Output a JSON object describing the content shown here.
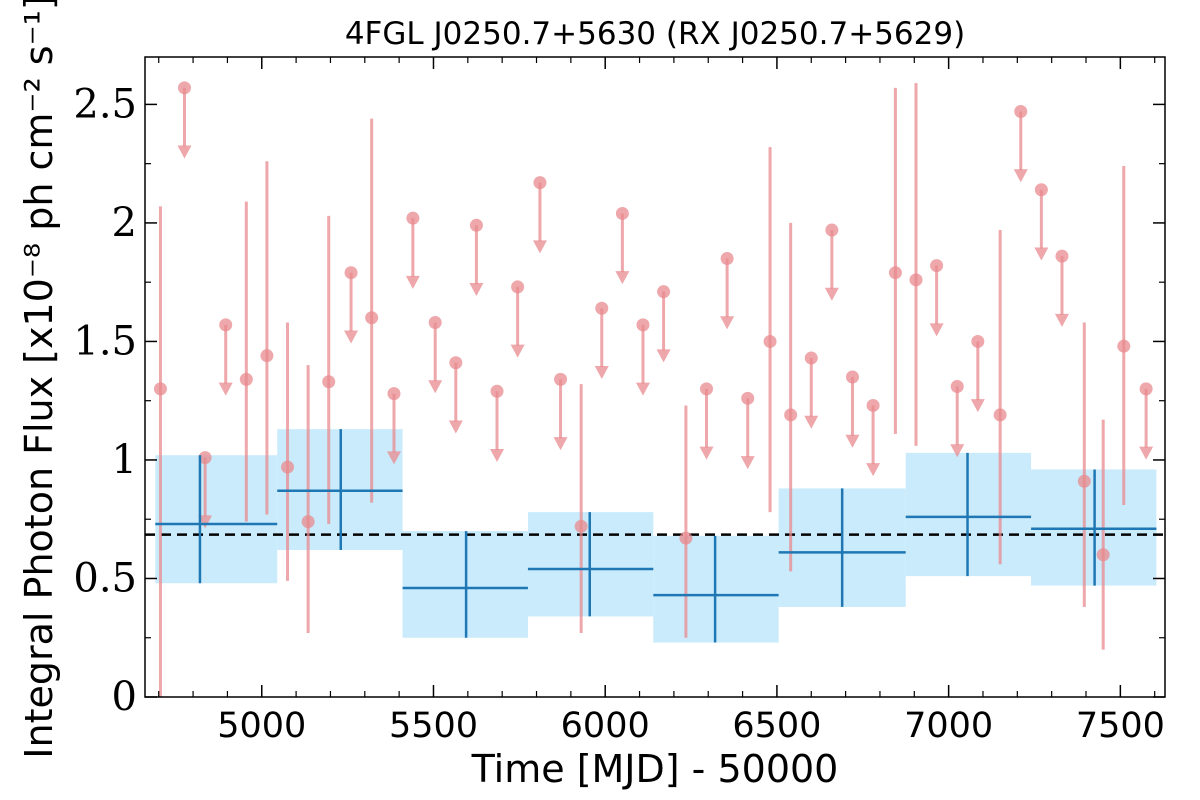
{
  "chart_data": {
    "type": "scatter",
    "title": "4FGL J0250.7+5630 (RX J0250.7+5629)",
    "xlabel": "Time [MJD] - 50000",
    "ylabel": "Integral Photon Flux [x10⁻⁸ ph cm⁻² s⁻¹]",
    "xlim": [
      4660,
      7630
    ],
    "ylim": [
      0,
      2.7
    ],
    "x_ticks": [
      5000,
      5500,
      6000,
      6500,
      7000,
      7500
    ],
    "y_ticks": [
      0,
      0.5,
      1,
      1.5,
      2,
      2.5
    ],
    "y_tick_labels": [
      "0",
      "0.5",
      "1",
      "1.5",
      "2",
      "2.5"
    ],
    "mean_flux": 0.685,
    "colors": {
      "short_bins": "#e8898e",
      "long_bins": "#1f77b4",
      "long_bins_fill": "#c9ebfb",
      "mean_line": "#000000"
    },
    "series": [
      {
        "kind": "detections_short_bins",
        "points": [
          {
            "x": 4705,
            "y": 1.3,
            "ylo": 0.0,
            "yhi": 2.07
          },
          {
            "x": 5015,
            "y": 1.44,
            "ylo": 0.77,
            "yhi": 2.26
          },
          {
            "x": 4955,
            "y": 1.34,
            "ylo": 0.74,
            "yhi": 2.09
          },
          {
            "x": 5075,
            "y": 0.97,
            "ylo": 0.49,
            "yhi": 1.58
          },
          {
            "x": 5135,
            "y": 0.74,
            "ylo": 0.27,
            "yhi": 1.4
          },
          {
            "x": 5195,
            "y": 1.33,
            "ylo": 0.73,
            "yhi": 2.03
          },
          {
            "x": 5320,
            "y": 1.6,
            "ylo": 0.82,
            "yhi": 2.44
          },
          {
            "x": 5930,
            "y": 0.72,
            "ylo": 0.27,
            "yhi": 1.32
          },
          {
            "x": 6235,
            "y": 0.67,
            "ylo": 0.25,
            "yhi": 1.23
          },
          {
            "x": 6480,
            "y": 1.5,
            "ylo": 0.78,
            "yhi": 2.32
          },
          {
            "x": 6540,
            "y": 1.19,
            "ylo": 0.53,
            "yhi": 2.0
          },
          {
            "x": 6845,
            "y": 1.79,
            "ylo": 1.11,
            "yhi": 2.57
          },
          {
            "x": 6905,
            "y": 1.76,
            "ylo": 1.06,
            "yhi": 2.59
          },
          {
            "x": 7150,
            "y": 1.19,
            "ylo": 0.56,
            "yhi": 1.97
          },
          {
            "x": 7395,
            "y": 0.91,
            "ylo": 0.38,
            "yhi": 1.58
          },
          {
            "x": 7450,
            "y": 0.6,
            "ylo": 0.2,
            "yhi": 1.17
          },
          {
            "x": 7510,
            "y": 1.48,
            "ylo": 0.81,
            "yhi": 2.24
          }
        ]
      },
      {
        "kind": "upper_limits_short_bins",
        "points": [
          {
            "x": 4775,
            "y": 2.57,
            "arrow_to": 2.28
          },
          {
            "x": 4835,
            "y": 1.01,
            "arrow_to": 0.72
          },
          {
            "x": 4895,
            "y": 1.57,
            "arrow_to": 1.28
          },
          {
            "x": 5260,
            "y": 1.79,
            "arrow_to": 1.5
          },
          {
            "x": 5385,
            "y": 1.28,
            "arrow_to": 0.99
          },
          {
            "x": 5440,
            "y": 2.02,
            "arrow_to": 1.73
          },
          {
            "x": 5505,
            "y": 1.58,
            "arrow_to": 1.29
          },
          {
            "x": 5565,
            "y": 1.41,
            "arrow_to": 1.12
          },
          {
            "x": 5625,
            "y": 1.99,
            "arrow_to": 1.7
          },
          {
            "x": 5685,
            "y": 1.29,
            "arrow_to": 1.0
          },
          {
            "x": 5745,
            "y": 1.73,
            "arrow_to": 1.44
          },
          {
            "x": 5810,
            "y": 2.17,
            "arrow_to": 1.88
          },
          {
            "x": 5870,
            "y": 1.34,
            "arrow_to": 1.05
          },
          {
            "x": 5990,
            "y": 1.64,
            "arrow_to": 1.35
          },
          {
            "x": 6050,
            "y": 2.04,
            "arrow_to": 1.75
          },
          {
            "x": 6110,
            "y": 1.57,
            "arrow_to": 1.28
          },
          {
            "x": 6170,
            "y": 1.71,
            "arrow_to": 1.42
          },
          {
            "x": 6295,
            "y": 1.3,
            "arrow_to": 1.01
          },
          {
            "x": 6355,
            "y": 1.85,
            "arrow_to": 1.56
          },
          {
            "x": 6415,
            "y": 1.26,
            "arrow_to": 0.97
          },
          {
            "x": 6600,
            "y": 1.43,
            "arrow_to": 1.14
          },
          {
            "x": 6660,
            "y": 1.97,
            "arrow_to": 1.68
          },
          {
            "x": 6720,
            "y": 1.35,
            "arrow_to": 1.06
          },
          {
            "x": 6780,
            "y": 1.23,
            "arrow_to": 0.94
          },
          {
            "x": 6965,
            "y": 1.82,
            "arrow_to": 1.53
          },
          {
            "x": 7025,
            "y": 1.31,
            "arrow_to": 1.02
          },
          {
            "x": 7085,
            "y": 1.5,
            "arrow_to": 1.21
          },
          {
            "x": 7210,
            "y": 2.47,
            "arrow_to": 2.18
          },
          {
            "x": 7270,
            "y": 2.14,
            "arrow_to": 1.85
          },
          {
            "x": 7330,
            "y": 1.86,
            "arrow_to": 1.57
          },
          {
            "x": 7575,
            "y": 1.3,
            "arrow_to": 1.01
          }
        ]
      },
      {
        "kind": "long_bins",
        "points": [
          {
            "x0": 4690,
            "x1": 5045,
            "xc": 4820,
            "y": 0.73,
            "ylo": 0.48,
            "yhi": 1.02
          },
          {
            "x0": 5045,
            "x1": 5410,
            "xc": 5230,
            "y": 0.87,
            "ylo": 0.62,
            "yhi": 1.13
          },
          {
            "x0": 5410,
            "x1": 5775,
            "xc": 5595,
            "y": 0.46,
            "ylo": 0.25,
            "yhi": 0.7
          },
          {
            "x0": 5775,
            "x1": 6140,
            "xc": 5955,
            "y": 0.54,
            "ylo": 0.34,
            "yhi": 0.78
          },
          {
            "x0": 6140,
            "x1": 6505,
            "xc": 6320,
            "y": 0.43,
            "ylo": 0.23,
            "yhi": 0.68
          },
          {
            "x0": 6505,
            "x1": 6875,
            "xc": 6690,
            "y": 0.61,
            "ylo": 0.38,
            "yhi": 0.88
          },
          {
            "x0": 6875,
            "x1": 7240,
            "xc": 7055,
            "y": 0.76,
            "ylo": 0.51,
            "yhi": 1.03
          },
          {
            "x0": 7240,
            "x1": 7605,
            "xc": 7425,
            "y": 0.71,
            "ylo": 0.47,
            "yhi": 0.96
          }
        ]
      }
    ]
  }
}
